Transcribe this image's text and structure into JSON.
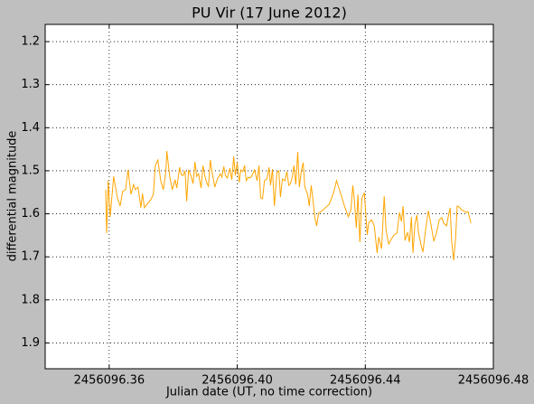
{
  "chart_data": {
    "type": "line",
    "title": "PU Vir (17 June 2012)",
    "x_label": "Julian date (UT, no time correction)",
    "y_label": "differential magnitude",
    "xlim": [
      2456096.34,
      2456096.48
    ],
    "xticks": [
      2456096.36,
      {
        "value": 2456096.4,
        "label": "2456096.40"
      },
      2456096.44,
      2456096.48
    ],
    "ylim": [
      1.96,
      1.16
    ],
    "yticks": [
      1.2,
      1.3,
      1.4,
      1.5,
      1.6,
      1.7,
      1.8,
      1.9
    ],
    "grid": true,
    "series": [
      {
        "color": "#ffa500",
        "x": [
          2456096.3589,
          2456096.3592,
          2456096.3597,
          2456096.3603,
          2456096.3614,
          2456096.3625,
          2456096.3634,
          2456096.3642,
          2456096.3651,
          2456096.3659,
          2456096.3668,
          2456096.3676,
          2456096.3682,
          2456096.369,
          2456096.3699,
          2456096.3704,
          2456096.371,
          2456096.3718,
          2456096.373,
          2456096.3738,
          2456096.3744,
          2456096.3752,
          2456096.3761,
          2456096.3769,
          2456096.3777,
          2456096.378,
          2456096.3789,
          2456096.3797,
          2456096.3806,
          2456096.3811,
          2456096.382,
          2456096.3825,
          2456096.3831,
          2456096.3837,
          2456096.3842,
          2456096.3848,
          2456096.3856,
          2456096.3862,
          2456096.3868,
          2456096.3873,
          2456096.3879,
          2456096.3887,
          2456096.3893,
          2456096.3899,
          2456096.3904,
          2456096.391,
          2456096.3916,
          2456096.3921,
          2456096.393,
          2456096.3938,
          2456096.3947,
          2456096.3952,
          2456096.3958,
          2456096.3963,
          2456096.3969,
          2456096.3977,
          2456096.3983,
          2456096.3989,
          2456096.3994,
          2456096.4,
          2456096.4006,
          2456096.4011,
          2456096.4017,
          2456096.4023,
          2456096.4028,
          2456096.4034,
          2456096.4039,
          2456096.4045,
          2456096.4054,
          2456096.4062,
          2456096.4068,
          2456096.4073,
          2456096.4079,
          2456096.4085,
          2456096.4093,
          2456096.4099,
          2456096.4104,
          2456096.411,
          2456096.4116,
          2456096.4124,
          2456096.413,
          2456096.4135,
          2456096.4141,
          2456096.4149,
          2456096.4155,
          2456096.4161,
          2456096.4166,
          2456096.4172,
          2456096.4177,
          2456096.4183,
          2456096.4189,
          2456096.4194,
          2456096.42,
          2456096.4206,
          2456096.4211,
          2456096.422,
          2456096.4225,
          2456096.4231,
          2456096.4237,
          2456096.4242,
          2456096.4248,
          2456096.4254,
          2456096.4268,
          2456096.4287,
          2456096.4301,
          2456096.431,
          2456096.4324,
          2456096.4335,
          2456096.4347,
          2456096.4355,
          2456096.4361,
          2456096.4366,
          2456096.4372,
          2456096.4377,
          2456096.4383,
          2456096.4389,
          2456096.4397,
          2456096.4406,
          2456096.4411,
          2456096.442,
          2456096.4428,
          2456096.4437,
          2456096.4442,
          2456096.4451,
          2456096.4459,
          2456096.4465,
          2456096.4473,
          2456096.4482,
          2456096.449,
          2456096.4499,
          2456096.4507,
          2456096.4513,
          2456096.4518,
          2456096.4524,
          2456096.4532,
          2456096.4538,
          2456096.4544,
          2456096.4549,
          2456096.4555,
          2456096.4561,
          2456096.4566,
          2456096.4575,
          2456096.458,
          2456096.4589,
          2456096.4597,
          2456096.4606,
          2456096.4614,
          2456096.4623,
          2456096.4631,
          2456096.4639,
          2456096.4645,
          2456096.4654,
          2456096.4659,
          2456096.4665,
          2456096.467,
          2456096.4676,
          2456096.4682,
          2456096.4687,
          2456096.4693,
          2456096.4701,
          2456096.4707,
          2456096.4716,
          2456096.4721,
          2456096.473
        ],
        "values": [
          1.544,
          1.645,
          1.523,
          1.607,
          1.513,
          1.561,
          1.582,
          1.548,
          1.544,
          1.498,
          1.555,
          1.532,
          1.544,
          1.538,
          1.586,
          1.553,
          1.586,
          1.578,
          1.567,
          1.555,
          1.488,
          1.475,
          1.523,
          1.544,
          1.502,
          1.454,
          1.513,
          1.544,
          1.521,
          1.54,
          1.492,
          1.509,
          1.511,
          1.5,
          1.571,
          1.498,
          1.513,
          1.53,
          1.479,
          1.513,
          1.507,
          1.54,
          1.488,
          1.513,
          1.527,
          1.536,
          1.475,
          1.502,
          1.538,
          1.519,
          1.507,
          1.515,
          1.49,
          1.511,
          1.517,
          1.494,
          1.521,
          1.467,
          1.511,
          1.481,
          1.527,
          1.498,
          1.502,
          1.488,
          1.523,
          1.515,
          1.517,
          1.513,
          1.498,
          1.523,
          1.488,
          1.563,
          1.565,
          1.523,
          1.519,
          1.492,
          1.534,
          1.496,
          1.582,
          1.504,
          1.5,
          1.561,
          1.519,
          1.523,
          1.502,
          1.534,
          1.53,
          1.515,
          1.488,
          1.532,
          1.456,
          1.538,
          1.502,
          1.481,
          1.538,
          1.555,
          1.582,
          1.534,
          1.57,
          1.607,
          1.628,
          1.599,
          1.591,
          1.578,
          1.551,
          1.523,
          1.555,
          1.582,
          1.607,
          1.591,
          1.534,
          1.57,
          1.633,
          1.555,
          1.666,
          1.565,
          1.551,
          1.649,
          1.62,
          1.614,
          1.628,
          1.691,
          1.654,
          1.681,
          1.559,
          1.639,
          1.67,
          1.658,
          1.649,
          1.645,
          1.597,
          1.618,
          1.582,
          1.662,
          1.643,
          1.666,
          1.607,
          1.691,
          1.624,
          1.603,
          1.643,
          1.675,
          1.689,
          1.633,
          1.593,
          1.628,
          1.664,
          1.643,
          1.614,
          1.609,
          1.622,
          1.628,
          1.607,
          1.586,
          1.666,
          1.708,
          1.658,
          1.582,
          1.584,
          1.591,
          1.593,
          1.597,
          1.595,
          1.622
        ]
      }
    ]
  }
}
